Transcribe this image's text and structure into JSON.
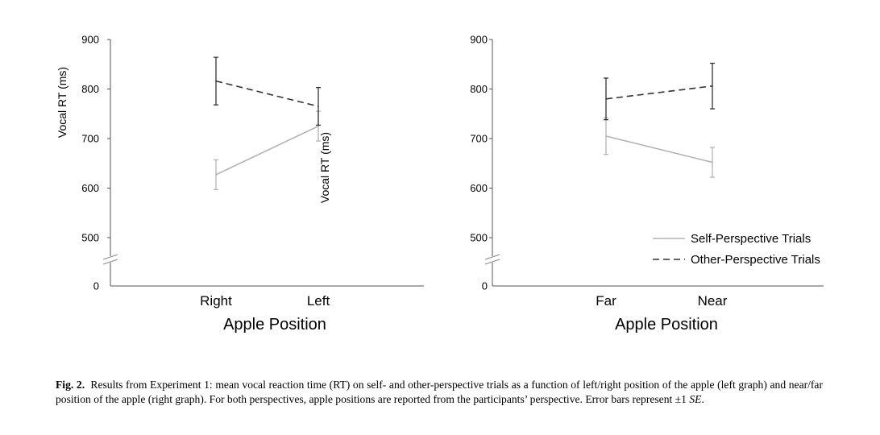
{
  "chart_data": [
    {
      "type": "line",
      "title": "",
      "xlabel": "Apple Position",
      "ylabel": "Vocal RT (ms)",
      "categories": [
        "Right",
        "Left"
      ],
      "yticks": [
        "0",
        "500",
        "600",
        "700",
        "800",
        "900"
      ],
      "y_break": true,
      "ylim": [
        500,
        900
      ],
      "series": [
        {
          "name": "Self-Perspective Trials",
          "style": "solid",
          "color": "#b3b3b3",
          "values": [
            627,
            725
          ],
          "se": [
            30,
            30
          ]
        },
        {
          "name": "Other-Perspective Trials",
          "style": "dashed",
          "color": "#333333",
          "values": [
            816,
            765
          ],
          "se": [
            48,
            38
          ]
        }
      ],
      "stray_label": "Vocal RT (ms)"
    },
    {
      "type": "line",
      "title": "",
      "xlabel": "Apple Position",
      "ylabel": "",
      "categories": [
        "Far",
        "Near"
      ],
      "yticks": [
        "0",
        "500",
        "600",
        "700",
        "800",
        "900"
      ],
      "y_break": true,
      "ylim": [
        500,
        900
      ],
      "series": [
        {
          "name": "Self-Perspective Trials",
          "style": "solid",
          "color": "#b3b3b3",
          "values": [
            705,
            652
          ],
          "se": [
            37,
            30
          ]
        },
        {
          "name": "Other-Perspective Trials",
          "style": "dashed",
          "color": "#333333",
          "values": [
            780,
            806
          ],
          "se": [
            42,
            46
          ]
        }
      ],
      "legend": {
        "position": "bottom-right",
        "items": [
          "Self-Perspective Trials",
          "Other-Perspective Trials"
        ]
      }
    }
  ],
  "caption": {
    "label": "Fig. 2.",
    "text1": "Results from Experiment 1: mean vocal reaction time (RT) on self- and other-perspective trials as a function of left/right position of the apple (left graph) and near/far position of the apple (right graph). For both perspectives, apple positions are reported from the participants’ perspective. Error bars represent ±1 ",
    "se": "SE",
    "text2": "."
  }
}
